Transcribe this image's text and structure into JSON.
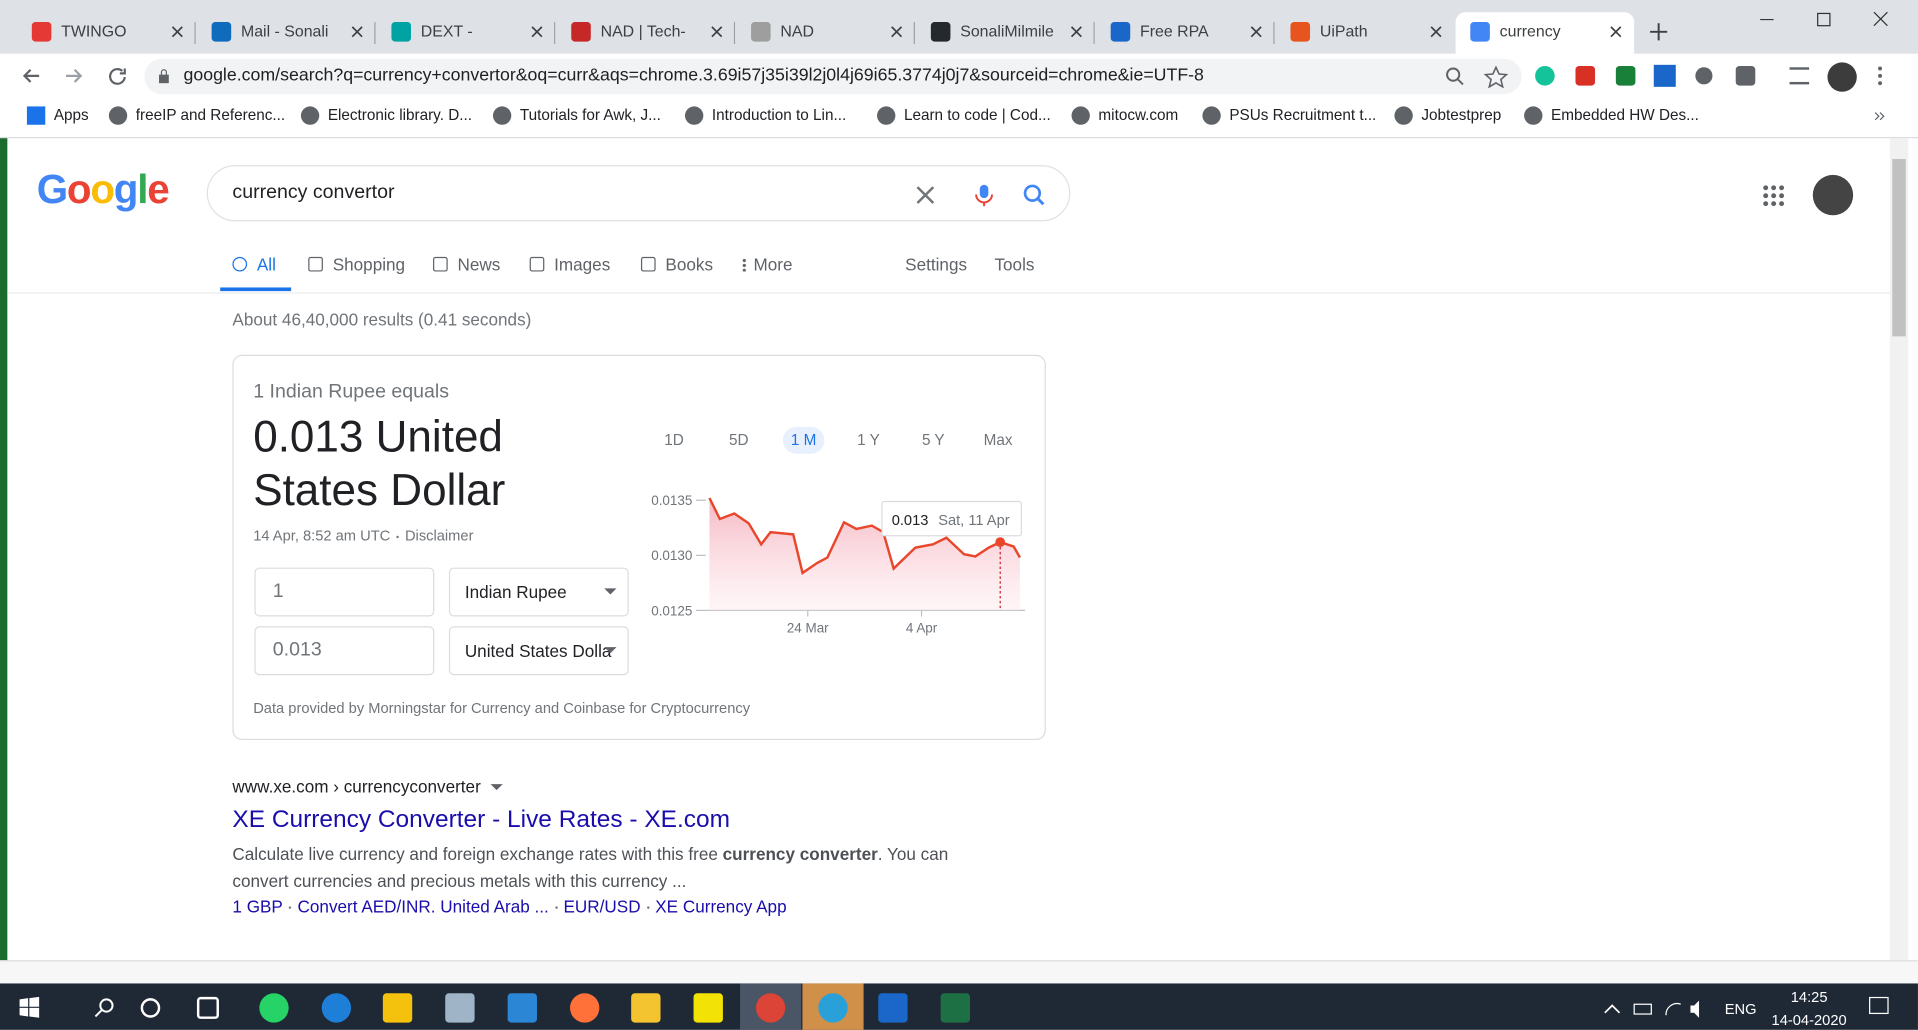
{
  "tabs": [
    "TWINGO",
    "Mail - Sonali M",
    "DEXT - WebEx",
    "NAD | Tech-Ma",
    "NAD",
    "SonaliMilmile",
    "Free RPA Cour",
    "UiPath Academ",
    "currency conve"
  ],
  "address": "google.com/search?q=currency+convertor&oq=curr&aqs=chrome.3.69i57j35i39l2j0l4j69i65.3774j0j7&sourceid=chrome&ie=UTF-8",
  "bookmarks": [
    "Apps",
    "freeIP and Referenc...",
    "Electronic library. D...",
    "Tutorials for Awk, J...",
    "Introduction to Lin...",
    "Learn to code | Cod...",
    "mitocw.com",
    "PSUs Recruitment t...",
    "Jobtestprep",
    "Embedded HW Des..."
  ],
  "search": {
    "logo": "Google",
    "query": "currency convertor",
    "tabs": [
      "All",
      "Shopping",
      "News",
      "Images",
      "Books",
      "More"
    ],
    "settings": "Settings",
    "tools": "Tools",
    "stats": "About 46,40,000 results (0.41 seconds)"
  },
  "converter": {
    "heading": "1 Indian Rupee equals",
    "result": "0.013 United States Dollar",
    "timestamp": "14 Apr, 8:52 am UTC",
    "disclaimer": "Disclaimer",
    "from_amount": "1",
    "from_currency": "Indian Rupee",
    "to_amount": "0.013",
    "to_currency": "United States Dolla",
    "ranges": [
      "1D",
      "5D",
      "1 M",
      "1 Y",
      "5 Y",
      "Max"
    ],
    "footer": "Data provided by Morningstar for Currency and Coinbase for Cryptocurrency"
  },
  "chart_data": {
    "type": "line",
    "color": "#e8472b",
    "x": [
      74.5,
      75.5,
      76.9,
      78.3,
      79.5,
      80.4,
      82.6,
      83.5,
      84.9,
      85.9,
      87.5,
      88.7,
      90.2,
      91.3,
      92.3,
      94.4,
      96.1,
      97.4,
      99.1,
      100.2,
      101.5,
      102.6,
      103.9,
      104.5
    ],
    "values": [
      0.01352,
      0.01333,
      0.01338,
      0.01329,
      0.0131,
      0.01321,
      0.01319,
      0.01284,
      0.01293,
      0.01298,
      0.0133,
      0.01324,
      0.01327,
      0.01321,
      0.01288,
      0.01307,
      0.0131,
      0.01316,
      0.01301,
      0.01299,
      0.01307,
      0.01312,
      0.01308,
      0.01298
    ],
    "xlim": [
      74.5,
      105
    ],
    "xticks": [
      {
        "value": 84,
        "label": "24 Mar"
      },
      {
        "value": 95,
        "label": "4 Apr"
      }
    ],
    "ylim": [
      0.0125,
      0.0135
    ],
    "yticks": [
      0.0125,
      {
        "value": 0.013,
        "label": "0.0130"
      },
      0.0135
    ],
    "tooltip_value": 0.013,
    "tooltip_date": "Sat, 11 Apr"
  },
  "result": {
    "breadcrumb": "www.xe.com › currencyconverter",
    "title": "XE Currency Converter - Live Rates - XE.com",
    "snippet": [
      "Calculate live currency and foreign exchange rates with this free ",
      "currency converter",
      ". You can convert currencies and precious metals with this currency ..."
    ],
    "sitelinks": [
      "1 GBP",
      "Convert AED/INR. United Arab ...",
      "EUR/USD",
      "XE Currency App"
    ]
  },
  "taskbar": {
    "language": "ENG",
    "time": "14:25",
    "date": "14-04-2020"
  }
}
